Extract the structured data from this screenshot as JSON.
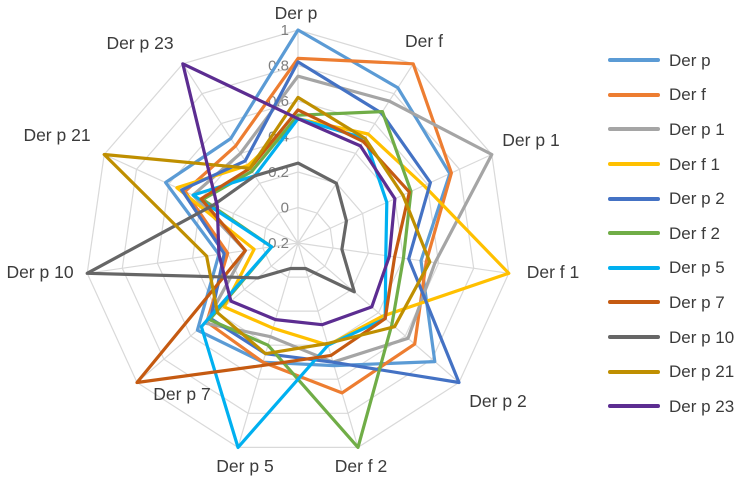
{
  "figure": {
    "background": "#FFFFFF"
  },
  "chart_data": {
    "type": "radar",
    "title": "",
    "categories": [
      "Der p",
      "Der f",
      "Der p 1",
      "Der f 1",
      "Der p 2",
      "Der f 2",
      "Der p 5",
      "Der p 7",
      "Der p 10",
      "Der p 21",
      "Der p 23"
    ],
    "radial_axis": {
      "min": -0.2,
      "max": 1.0,
      "tick_step": 0.2,
      "tick_labels": [
        "1",
        "0.8",
        "0.6",
        "0.4",
        "0.2",
        "0",
        "-0.2"
      ],
      "grid_values": [
        0,
        0.2,
        0.4,
        0.6,
        0.8,
        1.0
      ]
    },
    "grid": true,
    "grid_color": "#D9D9D9",
    "tick_label_color": "#7F7F7F",
    "category_label_color": "#3B3B3B",
    "legend_position": "right",
    "series": [
      {
        "name": "Der p",
        "color": "#5B9BD5",
        "values": [
          1.0,
          0.84,
          0.74,
          0.5,
          0.82,
          0.52,
          0.5,
          0.55,
          0.25,
          0.62,
          0.5
        ]
      },
      {
        "name": "Der f",
        "color": "#ED7D31",
        "values": [
          0.84,
          1.0,
          0.75,
          0.53,
          0.67,
          0.68,
          0.5,
          0.48,
          0.2,
          0.5,
          0.45
        ]
      },
      {
        "name": "Der p 1",
        "color": "#A5A5A5",
        "values": [
          0.74,
          0.75,
          1.0,
          0.58,
          0.62,
          0.5,
          0.35,
          0.49,
          0.1,
          0.45,
          0.4
        ]
      },
      {
        "name": "Der f 1",
        "color": "#FFC000",
        "values": [
          0.5,
          0.53,
          0.58,
          1.0,
          0.43,
          0.4,
          0.3,
          0.35,
          0.05,
          0.55,
          0.32
        ]
      },
      {
        "name": "Der p 2",
        "color": "#4472C4",
        "values": [
          0.82,
          0.67,
          0.62,
          0.43,
          1.0,
          0.5,
          0.45,
          0.45,
          0.22,
          0.52,
          0.35
        ]
      },
      {
        "name": "Der f 2",
        "color": "#70AD47",
        "values": [
          0.52,
          0.68,
          0.5,
          0.4,
          0.5,
          1.0,
          0.4,
          0.46,
          -0.05,
          0.39,
          0.28
        ]
      },
      {
        "name": "Der p 5",
        "color": "#00B0F0",
        "values": [
          0.5,
          0.5,
          0.35,
          0.3,
          0.45,
          0.4,
          1.0,
          0.52,
          -0.05,
          0.45,
          0.25
        ]
      },
      {
        "name": "Der p 7",
        "color": "#C55A11",
        "values": [
          0.55,
          0.48,
          0.49,
          0.35,
          0.45,
          0.46,
          0.52,
          1.0,
          0.1,
          0.4,
          0.3
        ]
      },
      {
        "name": "Der p 10",
        "color": "#666666",
        "values": [
          0.25,
          0.2,
          0.1,
          0.05,
          0.22,
          -0.05,
          -0.05,
          0.1,
          1.0,
          0.32,
          0.25
        ]
      },
      {
        "name": "Der p 21",
        "color": "#BF8F00",
        "values": [
          0.62,
          0.5,
          0.45,
          0.55,
          0.52,
          0.39,
          0.45,
          0.4,
          0.32,
          1.0,
          0.3
        ]
      },
      {
        "name": "Der p 23",
        "color": "#5C2D91",
        "values": [
          0.5,
          0.45,
          0.4,
          0.32,
          0.35,
          0.28,
          0.25,
          0.3,
          0.25,
          0.3,
          1.0
        ]
      }
    ]
  }
}
